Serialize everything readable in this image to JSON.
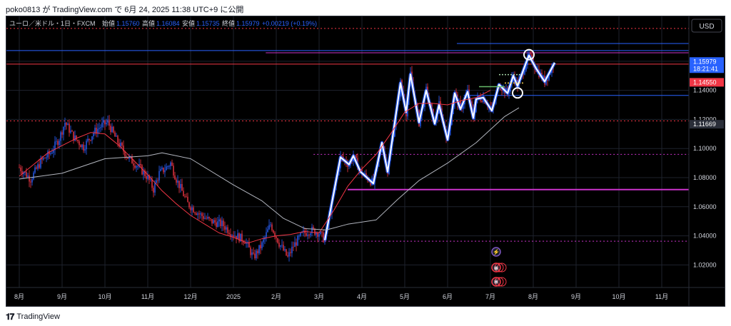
{
  "header": {
    "caption": "poko0813 が TradingView.com で 6月 24, 2025 11:38 UTC+9 に公開"
  },
  "legend": {
    "symbol": "ユーロ／米ドル・1日・FXCM",
    "open_label": "始値",
    "open_value": "1.15760",
    "high_label": "高値",
    "high_value": "1.16084",
    "low_label": "安値",
    "low_value": "1.15735",
    "close_label": "終値",
    "close_value": "1.15979",
    "change": "+0.00219 (+0.19%)"
  },
  "currency_button": "USD",
  "footer": {
    "brand": "TradingView",
    "logo": "tradingview-logo-icon"
  },
  "colors": {
    "background": "#000000",
    "up_candle": "#2962ff",
    "down_candle": "#f23645",
    "sma_short": "#f23645",
    "sma_long": "#b2b5be",
    "trace": "#ffffff",
    "magenta": "#cc33cc",
    "blue_line": "#2962ff",
    "red_line": "#f23645"
  },
  "chart_data": {
    "type": "line",
    "title": "",
    "xlabel": "",
    "ylabel": "",
    "ylim": [
      1.0045,
      1.1908
    ],
    "grid": true,
    "x_ticks": [
      "8月",
      "9月",
      "10月",
      "11月",
      "12月",
      "2025",
      "2月",
      "3月",
      "4月",
      "5月",
      "6月",
      "7月",
      "8月",
      "9月",
      "10月",
      "11月"
    ],
    "x_tick_idx": [
      0,
      30,
      60,
      90,
      120,
      150,
      180,
      210,
      240,
      270,
      300,
      330,
      360,
      390,
      420,
      450
    ],
    "y_ticks": [
      1.02,
      1.04,
      1.06,
      1.08,
      1.1,
      1.12,
      1.14,
      1.16
    ],
    "y_tick_labels": [
      "1.02000",
      "1.04000",
      "1.06000",
      "1.08000",
      "1.10000",
      "1.12000",
      "1.14000",
      "1.16000"
    ],
    "price_badges": [
      {
        "value": 1.15979,
        "text": "1.15979",
        "sub": "18:21:41",
        "color": "#2962ff"
      },
      {
        "value": 1.1455,
        "text": "1.14550",
        "color": "#f23645"
      },
      {
        "value": 1.11669,
        "text": "1.11669",
        "color": "#2a2e39"
      }
    ],
    "series": [
      {
        "name": "",
        "kind": "trace",
        "color": "#ffffff",
        "points": [
          [
            214,
            1.037
          ],
          [
            225,
            1.094
          ],
          [
            231,
            1.089
          ],
          [
            234,
            1.095
          ],
          [
            239,
            1.084
          ],
          [
            248,
            1.076
          ],
          [
            254,
            1.104
          ],
          [
            258,
            1.084
          ],
          [
            267,
            1.145
          ],
          [
            271,
            1.125
          ],
          [
            274,
            1.151
          ],
          [
            280,
            1.118
          ],
          [
            285,
            1.14
          ],
          [
            291,
            1.117
          ],
          [
            294,
            1.13
          ],
          [
            300,
            1.106
          ],
          [
            305,
            1.138
          ],
          [
            309,
            1.127
          ],
          [
            314,
            1.139
          ],
          [
            318,
            1.121
          ],
          [
            320,
            1.134
          ],
          [
            325,
            1.135
          ],
          [
            331,
            1.126
          ],
          [
            336,
            1.144
          ],
          [
            342,
            1.138
          ],
          [
            346,
            1.15
          ],
          [
            349,
            1.143
          ],
          [
            355,
            1.159
          ],
          [
            357,
            1.164
          ],
          [
            362,
            1.155
          ],
          [
            368,
            1.146
          ],
          [
            375,
            1.159
          ]
        ]
      },
      {
        "name": "",
        "kind": "sma",
        "color": "#f23645",
        "points": [
          [
            0,
            1.081
          ],
          [
            10,
            1.089
          ],
          [
            20,
            1.097
          ],
          [
            30,
            1.102
          ],
          [
            40,
            1.107
          ],
          [
            50,
            1.111
          ],
          [
            60,
            1.11
          ],
          [
            70,
            1.102
          ],
          [
            80,
            1.092
          ],
          [
            90,
            1.082
          ],
          [
            100,
            1.071
          ],
          [
            110,
            1.062
          ],
          [
            120,
            1.054
          ],
          [
            130,
            1.048
          ],
          [
            140,
            1.042
          ],
          [
            150,
            1.039
          ],
          [
            160,
            1.035
          ],
          [
            170,
            1.038
          ],
          [
            180,
            1.04
          ],
          [
            190,
            1.041
          ],
          [
            200,
            1.043
          ],
          [
            210,
            1.042
          ],
          [
            220,
            1.057
          ],
          [
            230,
            1.074
          ],
          [
            240,
            1.086
          ],
          [
            250,
            1.096
          ],
          [
            260,
            1.11
          ],
          [
            270,
            1.125
          ],
          [
            280,
            1.131
          ],
          [
            290,
            1.131
          ],
          [
            300,
            1.13
          ],
          [
            310,
            1.133
          ],
          [
            320,
            1.135
          ],
          [
            330,
            1.14
          ]
        ]
      },
      {
        "name": "",
        "kind": "sma",
        "color": "#b2b5be",
        "points": [
          [
            0,
            1.079
          ],
          [
            30,
            1.083
          ],
          [
            60,
            1.093
          ],
          [
            90,
            1.095
          ],
          [
            100,
            1.097
          ],
          [
            120,
            1.093
          ],
          [
            150,
            1.075
          ],
          [
            170,
            1.064
          ],
          [
            185,
            1.052
          ],
          [
            200,
            1.045
          ],
          [
            215,
            1.044
          ],
          [
            230,
            1.048
          ],
          [
            250,
            1.051
          ],
          [
            265,
            1.065
          ],
          [
            280,
            1.078
          ],
          [
            300,
            1.09
          ],
          [
            320,
            1.104
          ],
          [
            340,
            1.122
          ],
          [
            350,
            1.128
          ]
        ]
      }
    ],
    "hlines": [
      {
        "y": 1.1825,
        "x1": 0,
        "x2": 100,
        "color": "#f23645",
        "style": "dotted",
        "width": 1
      },
      {
        "y": 1.1673,
        "x1": 0,
        "x2": 100,
        "color": "#2962ff",
        "style": "solid",
        "width": 1
      },
      {
        "y": 1.158,
        "x1": 0,
        "x2": 100,
        "color": "#f23645",
        "style": "solid",
        "width": 1
      },
      {
        "y": 1.1658,
        "x1": 38,
        "x2": 100,
        "color": "#cc33cc",
        "style": "solid",
        "width": 1
      },
      {
        "y": 1.119,
        "x1": 0,
        "x2": 100,
        "color": "#f23645",
        "style": "dotted",
        "width": 1
      },
      {
        "y": 1.096,
        "x1": 45,
        "x2": 100,
        "color": "#cc33cc",
        "style": "dotted",
        "width": 1
      },
      {
        "y": 1.0718,
        "x1": 50,
        "x2": 100,
        "color": "#cc33cc",
        "style": "solid",
        "width": 2
      },
      {
        "y": 1.0363,
        "x1": 43,
        "x2": 100,
        "color": "#cc33cc",
        "style": "dotted",
        "width": 1
      },
      {
        "y": 1.1722,
        "x1": 66,
        "x2": 100,
        "color": "#2962ff",
        "style": "solid",
        "width": 1
      },
      {
        "y": 1.1365,
        "x1": 67,
        "x2": 100,
        "color": "#2962ff",
        "style": "solid",
        "width": 1
      }
    ],
    "circles": [
      [
        357,
        1.1645
      ],
      [
        349,
        1.1382
      ]
    ],
    "event_icons": [
      "lightning-icon",
      "globe-flag-icon",
      "us-flag-icon"
    ]
  }
}
